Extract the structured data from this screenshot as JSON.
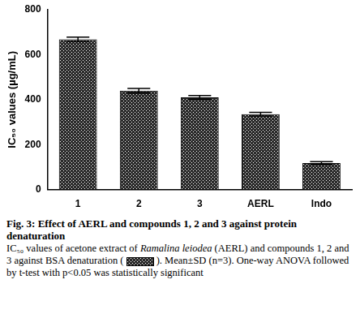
{
  "chart_data": {
    "type": "bar",
    "categories": [
      "1",
      "2",
      "3",
      "AERL",
      "Indo"
    ],
    "values": [
      668,
      440,
      410,
      335,
      118
    ],
    "errors": [
      10,
      10,
      8,
      8,
      6
    ],
    "color": "#2b2b2b",
    "y_label": "IC₅₀ values (µg/mL)",
    "ylim": [
      0,
      800
    ],
    "yticks": [
      0,
      200,
      400,
      600,
      800
    ],
    "grid": false
  },
  "caption": {
    "title": "Fig. 3: Effect of AERL and compounds 1, 2 and 3 against protein denaturation",
    "body": [
      "IC₅₀ values of acetone extract of ",
      "Ramalina leiodea",
      " (AERL) and compounds 1, 2 and 3 against BSA denaturation (",
      " ). Mean±SD (n=3). One-way ANOVA followed by t-test with p<0.05 was statistically significant"
    ]
  }
}
